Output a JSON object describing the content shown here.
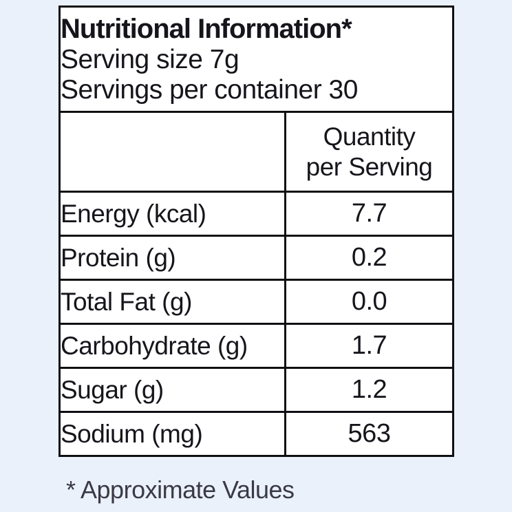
{
  "page": {
    "background_color": "#ebf1fb"
  },
  "label": {
    "title": "Nutritional Information*",
    "serving_size_line": "Serving size 7g",
    "servings_per_container_line": "Servings per container 30",
    "column_header": {
      "line1": "Quantity",
      "line2": "per Serving"
    },
    "rows": [
      {
        "label": "Energy (kcal)",
        "value": "7.7"
      },
      {
        "label": "Protein (g)",
        "value": "0.2"
      },
      {
        "label": "Total Fat (g)",
        "value": "0.0"
      },
      {
        "label": "Carbohydrate (g)",
        "value": "1.7"
      },
      {
        "label": "Sugar (g)",
        "value": "1.2"
      },
      {
        "label": "Sodium (mg)",
        "value": "563"
      }
    ],
    "footnote": "* Approximate Values",
    "colors": {
      "page_background": "#ebf1fb",
      "table_background": "#ffffff",
      "border": "#0f0f13",
      "text": "#15151b",
      "footnote_text": "#3a3a47"
    }
  }
}
